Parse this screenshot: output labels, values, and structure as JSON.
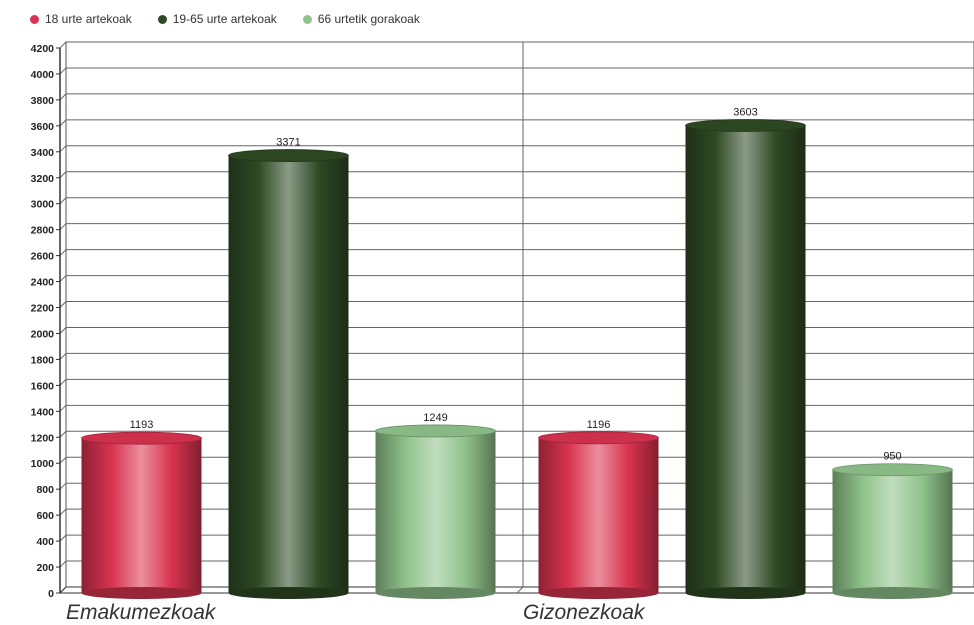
{
  "chart_data": {
    "type": "bar",
    "categories": [
      "Emakumezkoak",
      "Gizonezkoak"
    ],
    "series": [
      {
        "name": "18 urte artekoak",
        "color": "#d8334f",
        "values": [
          1193,
          1196
        ]
      },
      {
        "name": "19-65 urte artekoak",
        "color": "#2e4a24",
        "values": [
          3371,
          3603
        ]
      },
      {
        "name": "66 urtetik gorakoak",
        "color": "#8fc28a",
        "values": [
          1249,
          950
        ]
      }
    ],
    "value_labels": [
      [
        "1193",
        "1196"
      ],
      [
        "3371",
        "3603"
      ],
      [
        "1249",
        "950"
      ]
    ],
    "ylim": [
      0,
      4200
    ],
    "yticks": [
      0,
      200,
      400,
      600,
      800,
      1000,
      1200,
      1400,
      1600,
      1800,
      2000,
      2200,
      2400,
      2600,
      2800,
      3000,
      3200,
      3400,
      3600,
      3800,
      4000,
      4200
    ],
    "grid": true,
    "legend_position": "top-left"
  }
}
